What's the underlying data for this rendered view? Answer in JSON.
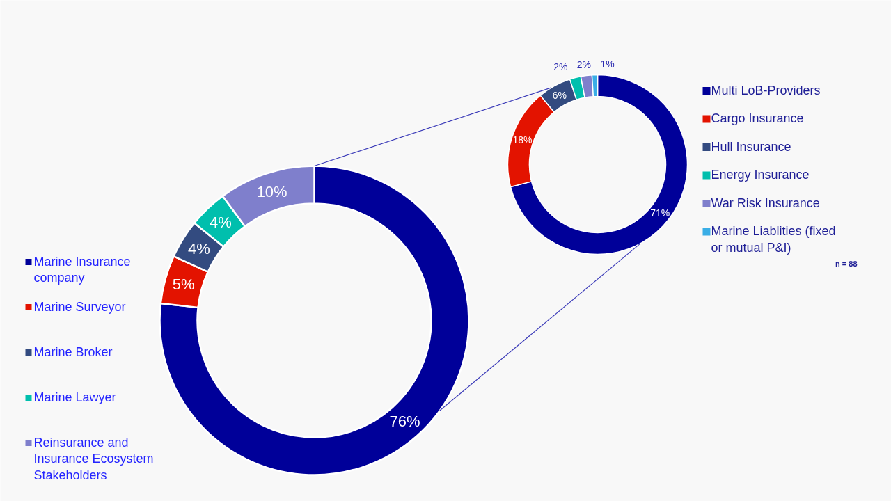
{
  "chart_data": [
    {
      "type": "donut",
      "categories": [
        "Marine Insurance company",
        "Marine Surveyor",
        "Marine Broker",
        "Marine Lawyer",
        "Reinsurance and Insurance Ecosystem Stakeholders"
      ],
      "values": [
        76,
        5,
        4,
        4,
        10
      ],
      "value_labels": [
        "76%",
        "5%",
        "4%",
        "4%",
        "10%"
      ],
      "colors": [
        "#000099",
        "#e31300",
        "#334b80",
        "#00bfad",
        "#7f7fcc"
      ],
      "legend": "left"
    },
    {
      "type": "donut",
      "categories": [
        "Multi LoB-Providers",
        "Cargo Insurance",
        "Hull Insurance",
        "Energy Insurance",
        "War Risk Insurance",
        "Marine Liablities (fixed or mutual P&I)"
      ],
      "values": [
        71,
        18,
        6,
        2,
        2,
        1
      ],
      "value_labels": [
        "71%",
        "18%",
        "6%",
        "2%",
        "2%",
        "1%"
      ],
      "colors": [
        "#000099",
        "#e31300",
        "#334b80",
        "#00bfad",
        "#7f7fcc",
        "#3aaee6"
      ],
      "legend": "right",
      "annotations": [
        "n = 88"
      ]
    }
  ]
}
